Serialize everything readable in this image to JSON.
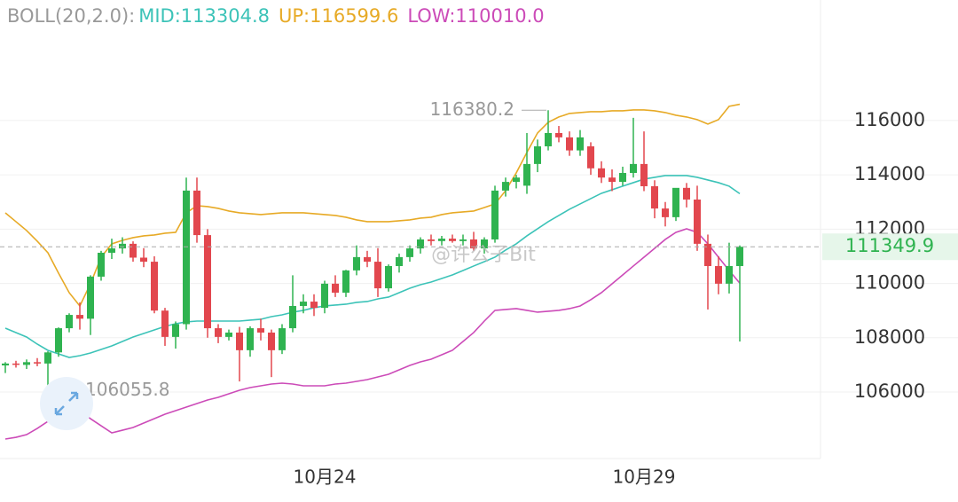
{
  "chart_data": {
    "type": "candlestick",
    "indicator": "BOLL(20,2.0):",
    "categories": [
      null,
      null,
      null,
      null,
      null,
      null,
      null,
      null,
      null,
      null,
      null,
      null,
      null,
      null,
      null,
      null,
      null,
      null,
      null,
      null,
      null,
      null,
      null,
      null,
      null,
      null,
      null,
      null,
      null,
      null,
      "10月24",
      null,
      null,
      null,
      null,
      null,
      null,
      null,
      null,
      null,
      null,
      null,
      null,
      null,
      null,
      null,
      null,
      null,
      null,
      null,
      null,
      null,
      null,
      null,
      null,
      null,
      null,
      null,
      null,
      null,
      "10月29",
      null,
      null,
      null,
      null,
      null,
      null,
      null,
      null,
      null
    ],
    "open": [
      106980,
      107050,
      107000,
      107100,
      107050,
      107460,
      108350,
      108840,
      108700,
      110250,
      111130,
      111290,
      111460,
      110950,
      110800,
      109000,
      108030,
      108500,
      113420,
      111780,
      108350,
      108030,
      108190,
      107540,
      108350,
      108190,
      107540,
      108350,
      109170,
      109330,
      109100,
      109990,
      109660,
      110480,
      110970,
      110800,
      109820,
      110640,
      110970,
      111290,
      111620,
      111560,
      111650,
      111560,
      111620,
      111290,
      111620,
      113420,
      113740,
      113600,
      114400,
      115050,
      115540,
      115380,
      114900,
      115050,
      114240,
      113900,
      113740,
      114070,
      114400,
      113580,
      112760,
      112440,
      113520,
      113090,
      111460,
      110640,
      109990,
      110640
    ],
    "high": [
      107100,
      107150,
      107200,
      107250,
      107500,
      108380,
      108900,
      109300,
      110300,
      111200,
      111650,
      111700,
      111550,
      111300,
      111000,
      109100,
      108600,
      113900,
      113900,
      112000,
      108500,
      108300,
      108400,
      108420,
      108700,
      108300,
      108500,
      110300,
      109600,
      109600,
      110100,
      110300,
      110500,
      111400,
      111200,
      111300,
      110700,
      111100,
      111400,
      111700,
      111800,
      111750,
      111800,
      111800,
      111900,
      111700,
      113600,
      113900,
      114000,
      115540,
      115300,
      116380.2,
      115800,
      115600,
      115650,
      115200,
      114500,
      114200,
      114300,
      116100,
      115600,
      113800,
      113000,
      113500,
      113700,
      113600,
      111800,
      111000,
      111500,
      111400
    ],
    "low": [
      106700,
      106900,
      106850,
      106950,
      106055.8,
      107300,
      108200,
      108300,
      108100,
      110100,
      110900,
      111100,
      110800,
      110600,
      108900,
      107700,
      107600,
      108300,
      111500,
      108000,
      107800,
      107900,
      106390,
      107300,
      107900,
      106550,
      107400,
      108200,
      108900,
      108800,
      108900,
      109500,
      109500,
      110300,
      110600,
      109500,
      109700,
      110400,
      110800,
      111100,
      111400,
      111400,
      111500,
      111400,
      111200,
      111100,
      111500,
      113200,
      113500,
      113300,
      114100,
      114900,
      115200,
      114700,
      114700,
      114000,
      113700,
      113400,
      113600,
      113900,
      113400,
      112400,
      112100,
      112300,
      112800,
      111200,
      109040,
      109600,
      109630,
      107860
    ],
    "close": [
      107050,
      107000,
      107100,
      107050,
      107460,
      108350,
      108840,
      108700,
      110250,
      111130,
      111290,
      111460,
      110950,
      110800,
      109000,
      108030,
      108500,
      113420,
      111780,
      108350,
      108030,
      108190,
      107540,
      108350,
      108190,
      107540,
      108350,
      109170,
      109330,
      109100,
      109990,
      109660,
      110480,
      110970,
      110800,
      109820,
      110640,
      110970,
      111290,
      111620,
      111560,
      111650,
      111560,
      111620,
      111290,
      111620,
      113420,
      113740,
      113900,
      114400,
      115050,
      115540,
      115380,
      114900,
      115380,
      114240,
      113900,
      113740,
      114070,
      114400,
      113580,
      112760,
      112440,
      113520,
      113090,
      111460,
      110640,
      109990,
      110640,
      111349.9
    ],
    "up_color": "#2fb350",
    "down_color": "#e2474e",
    "series": [
      {
        "label": "MID:113304.8",
        "color": "#3cc3b8",
        "values": [
          108353,
          108190,
          108026,
          107765,
          107536,
          107405,
          107274,
          107340,
          107438,
          107569,
          107699,
          107863,
          108026,
          108157,
          108288,
          108418,
          108516,
          108582,
          108614,
          108614,
          108614,
          108614,
          108614,
          108647,
          108680,
          108778,
          108843,
          108941,
          109007,
          109105,
          109170,
          109203,
          109235,
          109301,
          109333,
          109431,
          109497,
          109660,
          109824,
          109954,
          110052,
          110183,
          110314,
          110477,
          110641,
          110804,
          110967,
          111229,
          111458,
          111752,
          112013,
          112275,
          112503,
          112732,
          112928,
          113124,
          113320,
          113451,
          113582,
          113712,
          113843,
          113908,
          113974,
          113974,
          113974,
          113908,
          113810,
          113712,
          113582,
          113304.8
        ]
      },
      {
        "label": "UP:116599.6",
        "color": "#e7aa26",
        "values": [
          112601,
          112275,
          111948,
          111555,
          111131,
          110379,
          109660,
          109170,
          109987,
          110967,
          111458,
          111588,
          111686,
          111752,
          111784,
          111850,
          111882,
          112601,
          112863,
          112830,
          112765,
          112667,
          112601,
          112569,
          112536,
          112569,
          112601,
          112601,
          112601,
          112569,
          112536,
          112503,
          112438,
          112340,
          112275,
          112275,
          112275,
          112307,
          112340,
          112405,
          112438,
          112536,
          112601,
          112634,
          112667,
          112797,
          112928,
          113418,
          114072,
          114824,
          115542,
          115935,
          116131,
          116261,
          116294,
          116327,
          116327,
          116359,
          116359,
          116392,
          116392,
          116359,
          116294,
          116196,
          116131,
          116033,
          115869,
          116033,
          116523,
          116599.6
        ]
      },
      {
        "label": "LOW:110010.0",
        "color": "#cc4bb8",
        "values": [
          104268,
          104333,
          104431,
          104660,
          104921,
          105150,
          105346,
          105313,
          105019,
          104758,
          104496,
          104594,
          104692,
          104856,
          105019,
          105183,
          105313,
          105444,
          105575,
          105706,
          105804,
          105935,
          106065,
          106163,
          106229,
          106294,
          106327,
          106294,
          106229,
          106229,
          106229,
          106294,
          106327,
          106392,
          106458,
          106556,
          106654,
          106817,
          106980,
          107111,
          107209,
          107372,
          107536,
          107863,
          108190,
          108614,
          109007,
          109039,
          109072,
          109007,
          108941,
          108974,
          109007,
          109072,
          109170,
          109399,
          109660,
          109987,
          110314,
          110641,
          110967,
          111294,
          111621,
          111882,
          112013,
          111882,
          111458,
          110967,
          110477,
          110010.0
        ]
      }
    ],
    "ylim": [
      103550,
      119460
    ],
    "yticks": [
      106000,
      108000,
      110000,
      112000,
      114000,
      116000
    ],
    "grid": true,
    "watermark": "@许公子Bit"
  }
}
